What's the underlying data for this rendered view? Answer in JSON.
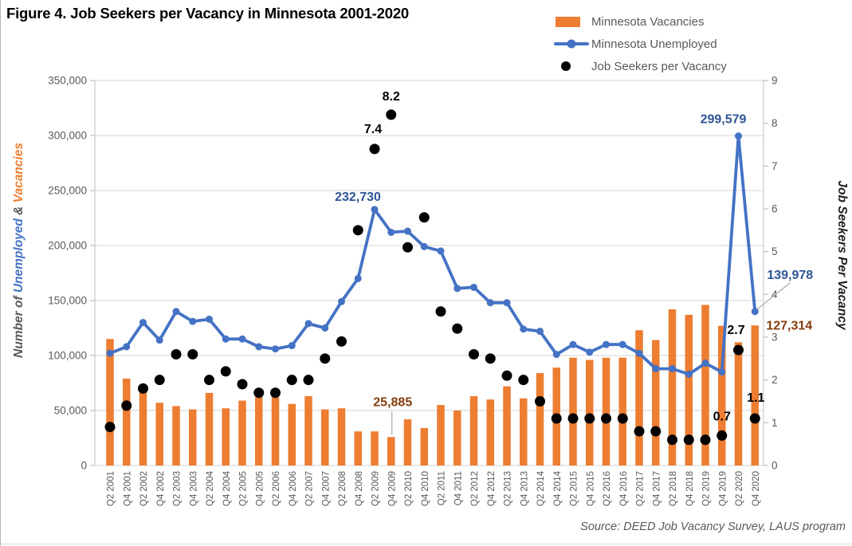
{
  "title": "Figure 4. Job Seekers per Vacancy in Minnesota 2001-2020",
  "source": "Source: DEED Job Vacancy Survey, LAUS program",
  "colors": {
    "bar": "#ED7D31",
    "line": "#4472C4",
    "dot": "#000000",
    "annotation_blue": "#2E5597",
    "annotation_brown": "#843C0C",
    "axis_text": "#595959",
    "gridline": "#D9D9D9",
    "tick_mark": "#BFBFBF",
    "leader_line": "#A6A6A6",
    "right_axis_title": "#1F1F1F",
    "title_text": "#000000"
  },
  "legend": {
    "items": [
      {
        "label": "Minnesota Vacancies",
        "swatch": "bar"
      },
      {
        "label": "Minnesota Unemployed",
        "swatch": "line"
      },
      {
        "label": "Job Seekers per Vacancy",
        "swatch": "dot"
      }
    ]
  },
  "left_axis": {
    "title_parts": [
      {
        "text": "Number of ",
        "color": "#595959"
      },
      {
        "text": "Unemployed",
        "color": "#4472C4"
      },
      {
        "text": " & ",
        "color": "#595959"
      },
      {
        "text": "Vacancies",
        "color": "#ED7D31"
      }
    ],
    "tick_labels": [
      "0",
      "50,000",
      "100,000",
      "150,000",
      "200,000",
      "250,000",
      "300,000",
      "350,000"
    ],
    "min": 0,
    "max": 350000,
    "step": 50000
  },
  "right_axis": {
    "title": "Job Seekers Per Vacancy",
    "tick_labels": [
      "0",
      "1",
      "2",
      "3",
      "4",
      "5",
      "6",
      "7",
      "8",
      "9"
    ],
    "min": 0,
    "max": 9,
    "step": 1
  },
  "chart_data": {
    "type": "combo",
    "sub_types": [
      "bar",
      "line",
      "scatter"
    ],
    "grid": "horizontal",
    "legend_position": "top-right",
    "categories": [
      "Q2 2001",
      "Q4 2001",
      "Q2 2002",
      "Q4 2002",
      "Q2 2003",
      "Q4 2003",
      "Q2 2004",
      "Q4 2004",
      "Q2 2005",
      "Q4 2005",
      "Q2 2006",
      "Q4 2006",
      "Q2 2007",
      "Q4 2007",
      "Q2 2008",
      "Q4 2008",
      "Q2 2009",
      "Q4 2009",
      "Q2 2010",
      "Q4 2010",
      "Q2 2011",
      "Q4 2011",
      "Q2 2012",
      "Q4 2012",
      "Q2 2013",
      "Q4 2013",
      "Q2 2014",
      "Q4 2014",
      "Q2 2015",
      "Q4 2015",
      "Q2 2016",
      "Q4 2016",
      "Q2 2017",
      "Q4 2017",
      "Q2 2018",
      "Q4 2018",
      "Q2 2019",
      "Q4 2019",
      "Q2 2020",
      "Q4 2020"
    ],
    "series": [
      {
        "name": "Minnesota Vacancies",
        "type": "bar",
        "axis": "left",
        "color": "#ED7D31",
        "values": [
          115000,
          79000,
          72000,
          57000,
          54000,
          51000,
          66000,
          52000,
          59000,
          62000,
          62000,
          56000,
          63000,
          51000,
          52000,
          31000,
          31000,
          25885,
          42000,
          34000,
          55000,
          50000,
          63000,
          60000,
          72000,
          61000,
          84000,
          89000,
          98000,
          96000,
          98000,
          98000,
          123000,
          114000,
          142000,
          137000,
          146000,
          127000,
          112000,
          127314
        ]
      },
      {
        "name": "Minnesota Unemployed",
        "type": "line",
        "axis": "left",
        "color": "#4472C4",
        "values": [
          102000,
          108000,
          130000,
          114000,
          140000,
          131000,
          133000,
          115000,
          115000,
          108000,
          106000,
          109000,
          129000,
          125000,
          149000,
          170000,
          232730,
          212000,
          213000,
          199000,
          195000,
          161000,
          162000,
          148000,
          148000,
          124000,
          122000,
          101000,
          110000,
          103000,
          110000,
          110000,
          102000,
          88000,
          88000,
          83000,
          93000,
          85000,
          299579,
          139978
        ]
      },
      {
        "name": "Job Seekers per Vacancy",
        "type": "scatter",
        "axis": "right",
        "color": "#000000",
        "values": [
          0.9,
          1.4,
          1.8,
          2.0,
          2.6,
          2.6,
          2.0,
          2.2,
          1.9,
          1.7,
          1.7,
          2.0,
          2.0,
          2.5,
          2.9,
          5.5,
          7.4,
          8.2,
          5.1,
          5.8,
          3.6,
          3.2,
          2.6,
          2.5,
          2.1,
          2.0,
          1.5,
          1.1,
          1.1,
          1.1,
          1.1,
          1.1,
          0.8,
          0.8,
          0.6,
          0.6,
          0.6,
          0.7,
          2.7,
          1.1
        ]
      }
    ],
    "annotations": [
      {
        "id": "unemp-peak-2009",
        "text": "232,730",
        "series": 1,
        "cat": 16,
        "color": "#2E5597"
      },
      {
        "id": "unemp-peak-2020",
        "text": "299,579",
        "series": 1,
        "cat": 38,
        "color": "#2E5597"
      },
      {
        "id": "unemp-end-2020",
        "text": "139,978",
        "series": 1,
        "cat": 39,
        "color": "#2E5597",
        "leader": true
      },
      {
        "id": "vac-low-2009",
        "text": "25,885",
        "series": 0,
        "cat": 17,
        "color": "#843C0C",
        "leader": true
      },
      {
        "id": "vac-end-2020",
        "text": "127,314",
        "series": 0,
        "cat": 39,
        "color": "#843C0C"
      },
      {
        "id": "jspv-2009q2",
        "text": "7.4",
        "series": 2,
        "cat": 16,
        "color": "#000000"
      },
      {
        "id": "jspv-2009q4",
        "text": "8.2",
        "series": 2,
        "cat": 17,
        "color": "#000000"
      },
      {
        "id": "jspv-2019q4",
        "text": "0.7",
        "series": 2,
        "cat": 37,
        "color": "#000000"
      },
      {
        "id": "jspv-2020q2",
        "text": "2.7",
        "series": 2,
        "cat": 38,
        "color": "#000000"
      },
      {
        "id": "jspv-2020q4",
        "text": "1.1",
        "series": 2,
        "cat": 39,
        "color": "#000000"
      }
    ]
  }
}
